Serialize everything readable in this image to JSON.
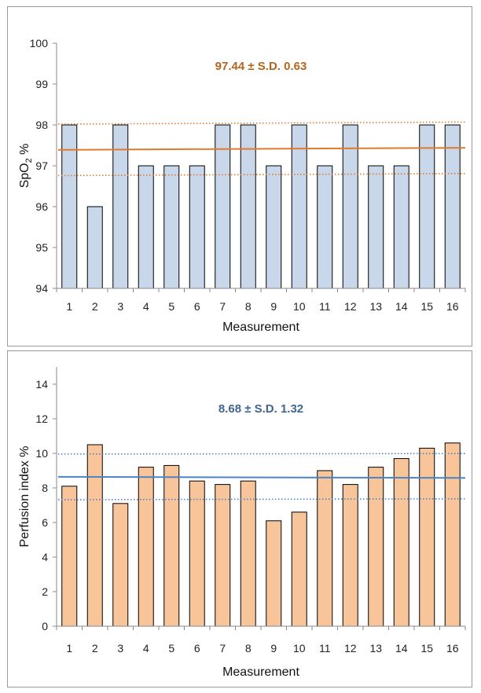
{
  "chart_data": [
    {
      "type": "bar",
      "categories": [
        "1",
        "2",
        "3",
        "4",
        "5",
        "6",
        "7",
        "8",
        "9",
        "10",
        "11",
        "12",
        "13",
        "14",
        "15",
        "16"
      ],
      "values": [
        98,
        96,
        98,
        97,
        97,
        97,
        98,
        98,
        97,
        98,
        97,
        98,
        97,
        97,
        98,
        98
      ],
      "xlabel": "Measurement",
      "ylabel_main": "SpO",
      "ylabel_sub": "2",
      "ylabel_unit": "%",
      "ylim": [
        94,
        100
      ],
      "yticks": [
        94,
        95,
        96,
        97,
        98,
        99,
        100
      ],
      "annotation": "97.44 ± S.D. 0.63",
      "mean": 97.44,
      "sd": 0.63,
      "mean_line": [
        97.39,
        97.44
      ],
      "upper_line": [
        98.02,
        98.07
      ],
      "lower_line": [
        96.76,
        96.81
      ],
      "bar_color": "#c9d7ea",
      "line_color": "#e07b2e",
      "annotation_color": "#b6651f",
      "grid": false
    },
    {
      "type": "bar",
      "categories": [
        "1",
        "2",
        "3",
        "4",
        "5",
        "6",
        "7",
        "8",
        "9",
        "10",
        "11",
        "12",
        "13",
        "14",
        "15",
        "16"
      ],
      "values": [
        8.1,
        10.5,
        7.1,
        9.2,
        9.3,
        8.4,
        8.2,
        8.4,
        6.1,
        6.6,
        9.0,
        8.2,
        9.2,
        9.7,
        10.3,
        10.6
      ],
      "xlabel": "Measurement",
      "ylabel_main": "Perfusion index %",
      "ylim": [
        0,
        15
      ],
      "yticks": [
        0,
        2,
        4,
        6,
        8,
        10,
        12,
        14
      ],
      "annotation": "8.68 ± S.D. 1.32",
      "mean": 8.68,
      "sd": 1.32,
      "mean_line": [
        8.64,
        8.58
      ],
      "upper_line": [
        9.96,
        9.99
      ],
      "lower_line": [
        7.32,
        7.37
      ],
      "bar_color": "#f8c49a",
      "line_color": "#4d84c4",
      "annotation_color": "#3f6690",
      "grid": false
    }
  ]
}
